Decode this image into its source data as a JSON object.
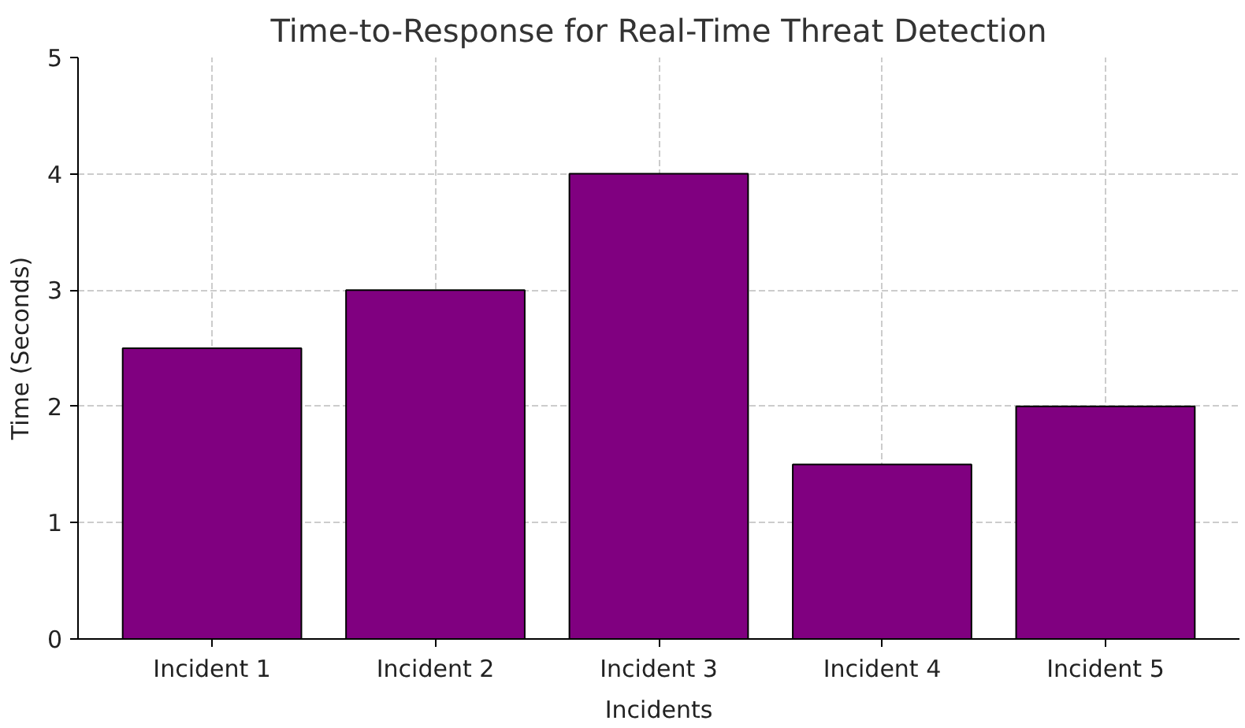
{
  "chart_data": {
    "type": "bar",
    "title": "Time-to-Response for Real-Time Threat Detection",
    "xlabel": "Incidents",
    "ylabel": "Time (Seconds)",
    "categories": [
      "Incident 1",
      "Incident 2",
      "Incident 3",
      "Incident 4",
      "Incident 5"
    ],
    "values": [
      2.5,
      3,
      4,
      1.5,
      2
    ],
    "color": "#800080",
    "ylim": [
      0,
      5
    ],
    "yticks": [
      0,
      1,
      2,
      3,
      4,
      5
    ],
    "grid": true
  }
}
